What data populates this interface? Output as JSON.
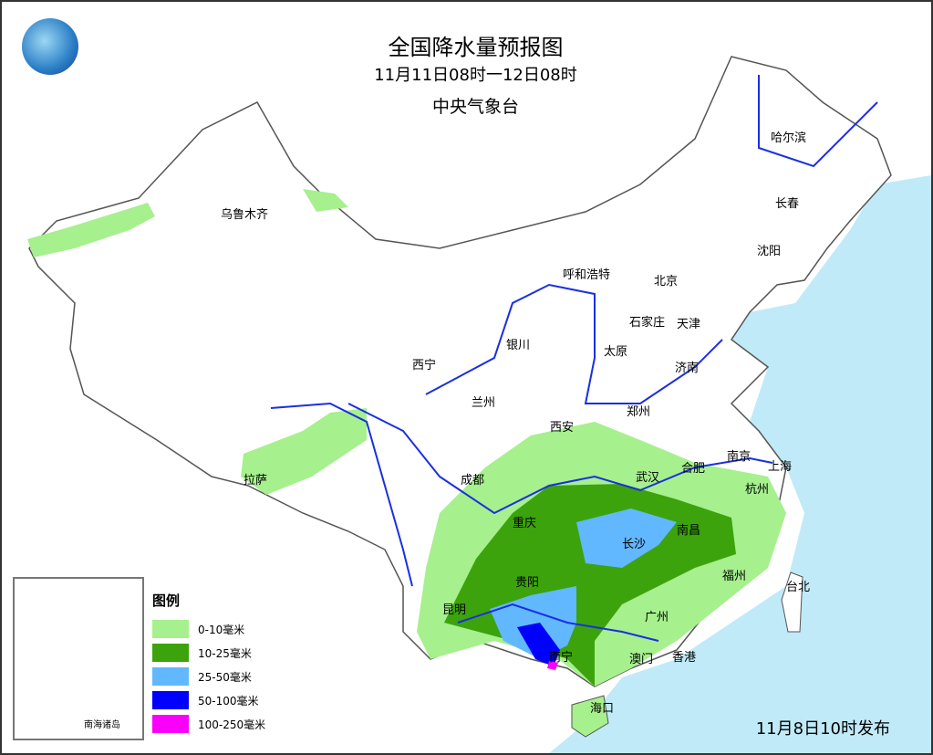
{
  "header": {
    "title": "全国降水量预报图",
    "period": "11月11日08时一12日08时",
    "issuer": "中央气象台"
  },
  "issue_time": "11月8日10时发布",
  "legend": {
    "title": "图例",
    "items": [
      {
        "label": "0-10毫米",
        "color": "#a6f08e"
      },
      {
        "label": "10-25毫米",
        "color": "#3ca30c"
      },
      {
        "label": "25-50毫米",
        "color": "#61b8ff"
      },
      {
        "label": "50-100毫米",
        "color": "#0000fe"
      },
      {
        "label": "100-250毫米",
        "color": "#fa00fa"
      }
    ]
  },
  "inset": {
    "label": "南海诸岛"
  },
  "colors": {
    "sea": "#c0eaf8",
    "river": "#1a2fe0",
    "border": "#555555"
  },
  "cities": [
    "乌鲁木齐",
    "哈尔滨",
    "长春",
    "沈阳",
    "呼和浩特",
    "北京",
    "石家庄",
    "天津",
    "银川",
    "太原",
    "西宁",
    "济南",
    "兰州",
    "郑州",
    "西安",
    "拉萨",
    "成都",
    "合肥",
    "南京",
    "上海",
    "武汉",
    "杭州",
    "重庆",
    "长沙",
    "南昌",
    "福州",
    "台北",
    "贵阳",
    "昆明",
    "广州",
    "南宁",
    "澳门",
    "香港",
    "海口"
  ]
}
